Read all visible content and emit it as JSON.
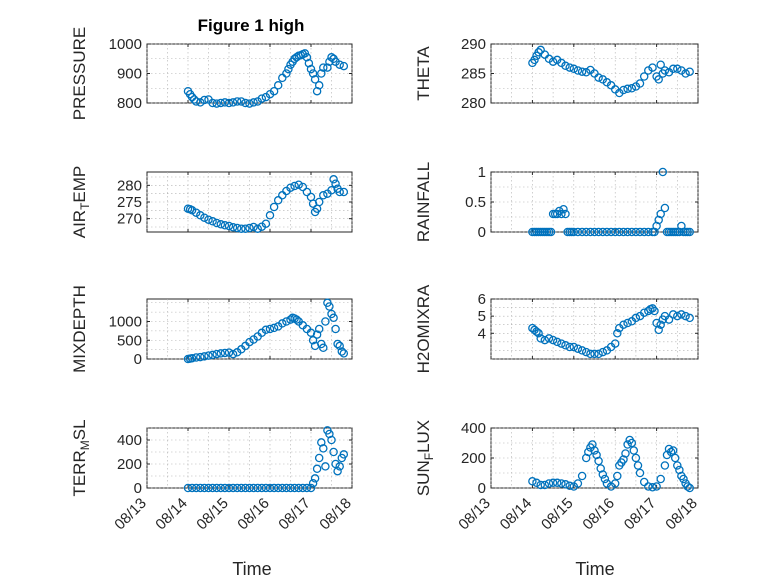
{
  "figure": {
    "title": "Figure 1 high",
    "xlabel": "Time",
    "marker_color": "#0072BD",
    "xticks": [
      "08/13",
      "08/14",
      "08/15",
      "08/16",
      "08/17",
      "08/18"
    ]
  },
  "chart_data": [
    {
      "type": "scatter",
      "id": "pressure",
      "ylabel": "PRESSURE",
      "title": "Figure 1 high",
      "ylim": [
        800,
        1000
      ],
      "yticks": [
        800,
        900,
        1000
      ],
      "grid": true,
      "x": [
        14.0,
        14.05,
        14.1,
        14.15,
        14.2,
        14.3,
        14.4,
        14.5,
        14.6,
        14.7,
        14.8,
        14.9,
        15.0,
        15.1,
        15.2,
        15.3,
        15.4,
        15.5,
        15.6,
        15.7,
        15.8,
        15.9,
        16.0,
        16.1,
        16.2,
        16.3,
        16.4,
        16.45,
        16.5,
        16.55,
        16.6,
        16.65,
        16.7,
        16.75,
        16.8,
        16.85,
        16.9,
        16.95,
        17.0,
        17.05,
        17.1,
        17.15,
        17.2,
        17.25,
        17.3,
        17.4,
        17.45,
        17.5,
        17.55,
        17.6,
        17.7,
        17.8
      ],
      "y": [
        840,
        830,
        820,
        812,
        805,
        802,
        810,
        812,
        800,
        798,
        800,
        802,
        800,
        802,
        805,
        805,
        800,
        798,
        802,
        805,
        815,
        820,
        830,
        840,
        860,
        885,
        900,
        915,
        930,
        940,
        950,
        955,
        960,
        962,
        965,
        968,
        955,
        935,
        915,
        900,
        880,
        840,
        860,
        900,
        920,
        920,
        940,
        955,
        950,
        940,
        930,
        925
      ]
    },
    {
      "type": "scatter",
      "id": "theta",
      "ylabel": "THETA",
      "ylim": [
        280,
        290
      ],
      "yticks": [
        280,
        285,
        290
      ],
      "grid": true,
      "x": [
        14.0,
        14.05,
        14.1,
        14.15,
        14.2,
        14.3,
        14.4,
        14.5,
        14.6,
        14.7,
        14.8,
        14.9,
        15.0,
        15.1,
        15.2,
        15.3,
        15.4,
        15.5,
        15.6,
        15.7,
        15.8,
        15.9,
        16.0,
        16.1,
        16.2,
        16.3,
        16.4,
        16.5,
        16.6,
        16.7,
        16.8,
        16.9,
        17.0,
        17.05,
        17.1,
        17.15,
        17.2,
        17.3,
        17.4,
        17.5,
        17.6,
        17.7,
        17.8
      ],
      "y": [
        286.8,
        287.3,
        288.0,
        288.6,
        289.0,
        288.2,
        287.5,
        287.0,
        287.3,
        286.8,
        286.3,
        286.0,
        285.8,
        285.5,
        285.3,
        285.2,
        285.6,
        285.0,
        284.3,
        284.0,
        283.5,
        283.0,
        282.3,
        281.7,
        282.2,
        282.4,
        282.5,
        282.8,
        283.3,
        284.5,
        285.5,
        286.0,
        284.5,
        284.0,
        286.5,
        285.0,
        285.5,
        285.2,
        285.8,
        285.8,
        285.5,
        285.0,
        285.3
      ]
    },
    {
      "type": "scatter",
      "id": "air_temp",
      "ylabel": "AIR_TEMP",
      "ylim": [
        266,
        284
      ],
      "yticks": [
        270,
        275,
        280
      ],
      "grid": true,
      "x": [
        14.0,
        14.05,
        14.1,
        14.2,
        14.3,
        14.4,
        14.5,
        14.6,
        14.7,
        14.8,
        14.9,
        15.0,
        15.1,
        15.2,
        15.3,
        15.4,
        15.5,
        15.6,
        15.7,
        15.8,
        15.9,
        16.0,
        16.1,
        16.2,
        16.3,
        16.4,
        16.5,
        16.6,
        16.7,
        16.8,
        16.9,
        17.0,
        17.05,
        17.1,
        17.15,
        17.2,
        17.3,
        17.4,
        17.5,
        17.55,
        17.6,
        17.65,
        17.7,
        17.8
      ],
      "y": [
        273.0,
        272.8,
        272.5,
        271.8,
        271.0,
        270.3,
        269.7,
        269.2,
        268.7,
        268.3,
        268.0,
        267.8,
        267.4,
        267.2,
        267.0,
        267.0,
        267.2,
        267.5,
        267.0,
        267.6,
        268.5,
        271.0,
        273.5,
        275.5,
        277.0,
        278.3,
        279.3,
        279.8,
        280.2,
        279.5,
        278.0,
        276.5,
        274.5,
        272.0,
        273.0,
        275.0,
        277.0,
        277.5,
        278.5,
        281.8,
        280.5,
        279.0,
        278.0,
        278.0
      ]
    },
    {
      "type": "scatter",
      "id": "rainfall",
      "ylabel": "RAINFALL",
      "ylim": [
        0,
        1
      ],
      "yticks": [
        0,
        0.5,
        1
      ],
      "grid": true,
      "x": [
        14.0,
        14.05,
        14.1,
        14.15,
        14.2,
        14.25,
        14.3,
        14.35,
        14.4,
        14.45,
        14.5,
        14.55,
        14.6,
        14.65,
        14.7,
        14.75,
        14.8,
        14.85,
        14.9,
        14.95,
        15.0,
        15.1,
        15.2,
        15.3,
        15.4,
        15.5,
        15.6,
        15.7,
        15.8,
        15.9,
        16.0,
        16.1,
        16.2,
        16.3,
        16.4,
        16.5,
        16.6,
        16.7,
        16.8,
        16.9,
        16.95,
        17.0,
        17.05,
        17.1,
        17.15,
        17.2,
        17.25,
        17.3,
        17.35,
        17.4,
        17.45,
        17.5,
        17.55,
        17.6,
        17.65,
        17.7,
        17.75,
        17.8
      ],
      "y": [
        0,
        0,
        0,
        0,
        0,
        0,
        0,
        0,
        0,
        0,
        0.3,
        0.3,
        0.3,
        0.35,
        0.3,
        0.38,
        0.3,
        0,
        0,
        0,
        0,
        0,
        0,
        0,
        0,
        0,
        0,
        0,
        0,
        0,
        0,
        0,
        0,
        0,
        0,
        0,
        0,
        0,
        0,
        0,
        0,
        0.1,
        0.2,
        0.3,
        1.0,
        0.4,
        0,
        0,
        0,
        0,
        0,
        0,
        0,
        0.1,
        0,
        0,
        0,
        0
      ]
    },
    {
      "type": "scatter",
      "id": "mixdepth",
      "ylabel": "MIXDEPTH",
      "ylim": [
        0,
        1600
      ],
      "yticks": [
        0,
        500,
        1000
      ],
      "grid": true,
      "x": [
        14.0,
        14.05,
        14.1,
        14.2,
        14.3,
        14.4,
        14.5,
        14.6,
        14.7,
        14.8,
        14.9,
        15.0,
        15.1,
        15.2,
        15.3,
        15.4,
        15.5,
        15.6,
        15.7,
        15.8,
        15.9,
        16.0,
        16.1,
        16.2,
        16.3,
        16.4,
        16.5,
        16.55,
        16.6,
        16.65,
        16.7,
        16.8,
        16.9,
        17.0,
        17.05,
        17.1,
        17.15,
        17.2,
        17.25,
        17.3,
        17.35,
        17.4,
        17.45,
        17.5,
        17.55,
        17.6,
        17.65,
        17.7,
        17.75,
        17.8
      ],
      "y": [
        0,
        10,
        20,
        40,
        50,
        70,
        90,
        110,
        130,
        150,
        160,
        170,
        130,
        180,
        260,
        350,
        450,
        520,
        600,
        700,
        780,
        800,
        830,
        870,
        950,
        1000,
        1050,
        1100,
        1080,
        1050,
        1000,
        900,
        800,
        700,
        500,
        350,
        650,
        800,
        400,
        300,
        1000,
        1500,
        1400,
        1200,
        1100,
        800,
        400,
        350,
        200,
        150
      ]
    },
    {
      "type": "scatter",
      "id": "h2omixra",
      "ylabel": "H2OMIXRA",
      "ylim": [
        2.5,
        6
      ],
      "yticks": [
        4,
        5,
        6
      ],
      "grid": true,
      "x": [
        14.0,
        14.05,
        14.1,
        14.15,
        14.2,
        14.3,
        14.4,
        14.5,
        14.6,
        14.7,
        14.8,
        14.9,
        15.0,
        15.1,
        15.2,
        15.3,
        15.4,
        15.5,
        15.6,
        15.7,
        15.8,
        15.9,
        16.0,
        16.05,
        16.1,
        16.2,
        16.3,
        16.4,
        16.5,
        16.6,
        16.7,
        16.8,
        16.85,
        16.9,
        16.95,
        17.0,
        17.05,
        17.1,
        17.15,
        17.2,
        17.3,
        17.4,
        17.5,
        17.6,
        17.7,
        17.8
      ],
      "y": [
        4.3,
        4.2,
        4.1,
        4.0,
        3.7,
        3.6,
        3.7,
        3.6,
        3.5,
        3.4,
        3.3,
        3.2,
        3.2,
        3.1,
        3.0,
        2.9,
        2.8,
        2.8,
        2.8,
        2.9,
        3.0,
        3.2,
        3.4,
        4.0,
        4.3,
        4.5,
        4.6,
        4.7,
        4.9,
        5.0,
        5.2,
        5.3,
        5.4,
        5.45,
        5.3,
        4.6,
        4.2,
        4.5,
        4.8,
        5.0,
        4.8,
        5.1,
        5.0,
        5.1,
        5.0,
        4.9
      ]
    },
    {
      "type": "scatter",
      "id": "terr_msl",
      "ylabel": "TERR_MSL",
      "ylim": [
        0,
        500
      ],
      "yticks": [
        0,
        200,
        400
      ],
      "grid": true,
      "x": [
        14.0,
        14.1,
        14.2,
        14.3,
        14.4,
        14.5,
        14.6,
        14.7,
        14.8,
        14.9,
        15.0,
        15.1,
        15.2,
        15.3,
        15.4,
        15.5,
        15.6,
        15.7,
        15.8,
        15.9,
        16.0,
        16.1,
        16.2,
        16.3,
        16.4,
        16.5,
        16.6,
        16.7,
        16.8,
        16.9,
        17.0,
        17.05,
        17.1,
        17.15,
        17.2,
        17.25,
        17.3,
        17.35,
        17.4,
        17.45,
        17.5,
        17.55,
        17.6,
        17.65,
        17.7,
        17.75,
        17.8
      ],
      "y": [
        0,
        0,
        0,
        0,
        0,
        0,
        0,
        0,
        0,
        0,
        0,
        0,
        0,
        0,
        0,
        0,
        0,
        0,
        0,
        0,
        0,
        0,
        0,
        0,
        0,
        0,
        0,
        0,
        0,
        0,
        0,
        40,
        80,
        160,
        250,
        380,
        330,
        180,
        480,
        450,
        400,
        300,
        200,
        140,
        180,
        250,
        280
      ]
    },
    {
      "type": "scatter",
      "id": "sun_flux",
      "ylabel": "SUN_FLUX",
      "ylim": [
        0,
        400
      ],
      "yticks": [
        0,
        200,
        400
      ],
      "grid": true,
      "x": [
        14.0,
        14.1,
        14.2,
        14.3,
        14.4,
        14.5,
        14.6,
        14.7,
        14.8,
        14.9,
        15.0,
        15.1,
        15.2,
        15.3,
        15.35,
        15.4,
        15.45,
        15.5,
        15.55,
        15.6,
        15.65,
        15.7,
        15.75,
        15.8,
        15.9,
        16.0,
        16.05,
        16.1,
        16.15,
        16.2,
        16.25,
        16.3,
        16.35,
        16.4,
        16.45,
        16.5,
        16.55,
        16.6,
        16.7,
        16.8,
        16.9,
        17.0,
        17.1,
        17.2,
        17.25,
        17.3,
        17.35,
        17.4,
        17.45,
        17.5,
        17.55,
        17.6,
        17.65,
        17.7,
        17.75,
        17.8
      ],
      "y": [
        45,
        35,
        20,
        20,
        30,
        35,
        35,
        30,
        25,
        15,
        10,
        30,
        80,
        200,
        240,
        270,
        290,
        250,
        220,
        180,
        130,
        90,
        60,
        30,
        10,
        30,
        80,
        150,
        170,
        190,
        230,
        290,
        320,
        300,
        250,
        200,
        150,
        100,
        40,
        10,
        5,
        10,
        60,
        150,
        220,
        260,
        240,
        250,
        200,
        150,
        120,
        80,
        60,
        30,
        10,
        0
      ]
    }
  ]
}
